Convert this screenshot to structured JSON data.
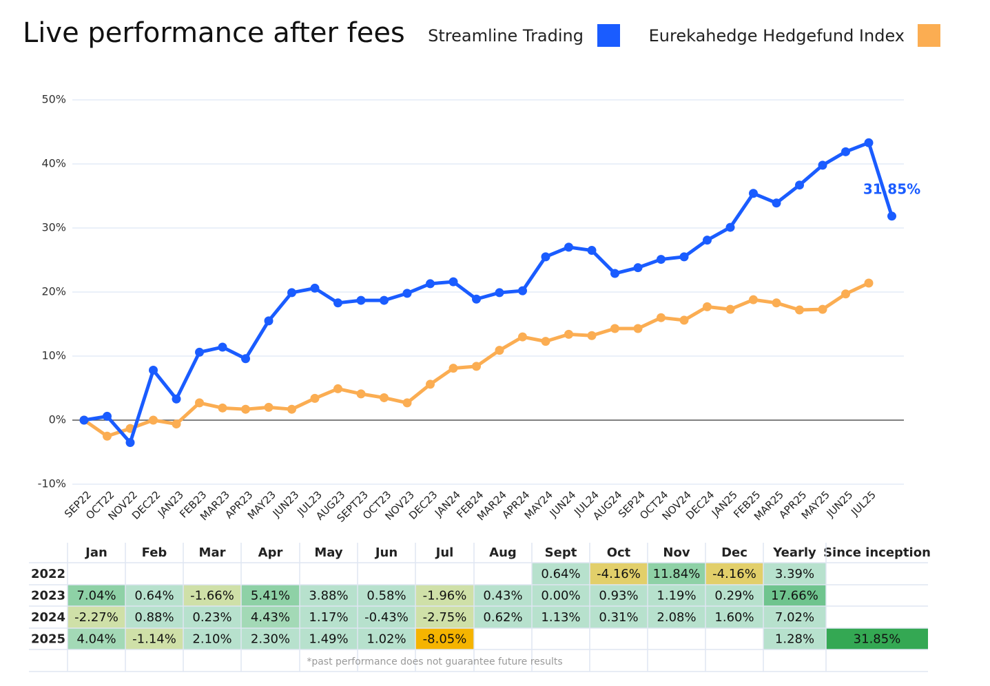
{
  "chart_data": {
    "type": "line",
    "title": "Live performance after fees",
    "categories": [
      "SEP22",
      "OCT22",
      "NOV22",
      "DEC22",
      "JAN23",
      "FEB23",
      "MAR23",
      "APR23",
      "MAY23",
      "JUN23",
      "JUL23",
      "AUG23",
      "SEPT23",
      "OCT23",
      "NOV23",
      "DEC23",
      "JAN24",
      "FEB24",
      "MAR24",
      "APR24",
      "MAY24",
      "JUN24",
      "JUL24",
      "AUG24",
      "SEP24",
      "OCT24",
      "NOV24",
      "DEC24",
      "JAN25",
      "FEB25",
      "MAR25",
      "APR25",
      "MAY25",
      "JUN25",
      "JUL25",
      null
    ],
    "series": [
      {
        "name": "Streamline Trading",
        "color": "#1a5cff",
        "values": [
          0,
          0.6,
          -3.5,
          7.8,
          3.3,
          10.6,
          11.4,
          9.6,
          15.5,
          19.9,
          20.6,
          18.3,
          18.7,
          18.7,
          19.8,
          21.3,
          21.6,
          18.9,
          19.9,
          20.2,
          25.5,
          27.0,
          26.5,
          22.9,
          23.8,
          25.1,
          25.5,
          28.1,
          30.1,
          35.4,
          33.9,
          36.7,
          39.8,
          41.9,
          43.3,
          31.85
        ],
        "value_labels": [
          null,
          null,
          null,
          null,
          null,
          null,
          null,
          null,
          null,
          null,
          null,
          null,
          null,
          null,
          null,
          null,
          null,
          null,
          null,
          null,
          null,
          null,
          null,
          null,
          null,
          null,
          null,
          null,
          null,
          null,
          null,
          null,
          null,
          null,
          null,
          "31.85%"
        ]
      },
      {
        "name": "Eurekahedge Hedgefund Index",
        "color": "#fbad52",
        "values": [
          0,
          -2.5,
          -1.3,
          0,
          -0.6,
          2.7,
          1.9,
          1.7,
          2.0,
          1.7,
          3.4,
          4.9,
          4.1,
          3.5,
          2.7,
          5.6,
          8.1,
          8.4,
          10.9,
          13.0,
          12.3,
          13.4,
          13.2,
          14.3,
          14.3,
          16.0,
          15.6,
          17.7,
          17.3,
          18.8,
          18.3,
          17.2,
          17.3,
          19.7,
          21.4,
          null
        ]
      }
    ],
    "ylim": [
      -10,
      50
    ],
    "yticks": [
      {
        "value": -10,
        "label": "-10%"
      },
      {
        "value": 0,
        "label": "0%"
      },
      {
        "value": 10,
        "label": "10%"
      },
      {
        "value": 20,
        "label": "20%"
      },
      {
        "value": 30,
        "label": "30%"
      },
      {
        "value": 40,
        "label": "40%"
      },
      {
        "value": 50,
        "label": "50%"
      }
    ],
    "grid": true
  },
  "table": {
    "columns": [
      null,
      "Jan",
      "Feb",
      "Mar",
      "Apr",
      "May",
      "Jun",
      "Jul",
      "Aug",
      "Sept",
      "Oct",
      "Nov",
      "Dec",
      "Yearly",
      "Since inception"
    ],
    "rows": [
      {
        "year": "2022",
        "cells": [
          null,
          null,
          null,
          null,
          null,
          null,
          null,
          null,
          "0.64%",
          "-4.16%",
          "11.84%",
          "-4.16%",
          "3.39%",
          null
        ],
        "colors": [
          null,
          null,
          null,
          null,
          null,
          null,
          null,
          null,
          "#b7e1cd",
          "#e2cf6a",
          "#8ed1a6",
          "#e2cf6a",
          "#b7e1cd",
          null
        ]
      },
      {
        "year": "2023",
        "cells": [
          "7.04%",
          "0.64%",
          "-1.66%",
          "5.41%",
          "3.88%",
          "0.58%",
          "-1.96%",
          "0.43%",
          "0.00%",
          "0.93%",
          "1.19%",
          "0.29%",
          "17.66%",
          null
        ],
        "colors": [
          "#8ed1a6",
          "#b7e1cd",
          "#cfe0a8",
          "#8ed1a6",
          "#b7e1cd",
          "#b7e1cd",
          "#cfe0a8",
          "#b7e1cd",
          "#b7e1cd",
          "#b7e1cd",
          "#b7e1cd",
          "#b7e1cd",
          "#6fc48e",
          null
        ]
      },
      {
        "year": "2024",
        "cells": [
          "-2.27%",
          "0.88%",
          "0.23%",
          "4.43%",
          "1.17%",
          "-0.43%",
          "-2.75%",
          "0.62%",
          "1.13%",
          "0.31%",
          "2.08%",
          "1.60%",
          "7.02%",
          null
        ],
        "colors": [
          "#cfe0a8",
          "#b7e1cd",
          "#b7e1cd",
          "#a3d9b6",
          "#b7e1cd",
          "#b7e1cd",
          "#cfe0a8",
          "#b7e1cd",
          "#b7e1cd",
          "#b7e1cd",
          "#b7e1cd",
          "#b7e1cd",
          "#b7e1cd",
          null
        ]
      },
      {
        "year": "2025",
        "cells": [
          "4.04%",
          "-1.14%",
          "2.10%",
          "2.30%",
          "1.49%",
          "1.02%",
          "-8.05%",
          null,
          null,
          null,
          null,
          null,
          "1.28%",
          "31.85%"
        ],
        "colors": [
          "#a3d9b6",
          "#cfe0a8",
          "#b7e1cd",
          "#b7e1cd",
          "#b7e1cd",
          "#b7e1cd",
          "#f5b400",
          null,
          null,
          null,
          null,
          null,
          "#b7e1cd",
          "#34a853"
        ]
      }
    ],
    "note": "*past performance does not guarantee future results"
  }
}
